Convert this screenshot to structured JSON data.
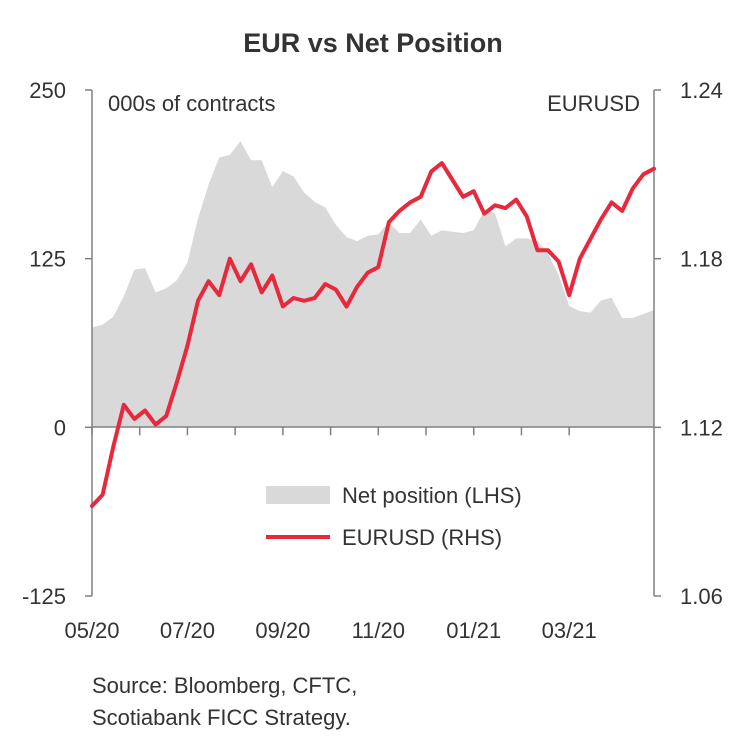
{
  "chart_data": {
    "type": "line",
    "title": "EUR  vs Net Position",
    "left_axis_label": "000s of contracts",
    "right_axis_label": "EURUSD",
    "left_axis": {
      "ylim": [
        -125,
        250
      ],
      "ticks": [
        "250",
        "125",
        "0",
        "-125"
      ],
      "tick_values": [
        250,
        125,
        0,
        -125
      ]
    },
    "right_axis": {
      "ylim": [
        1.06,
        1.24
      ],
      "ticks": [
        "1.24",
        "1.18",
        "1.12",
        "1.06"
      ],
      "tick_values": [
        1.24,
        1.18,
        1.12,
        1.06
      ]
    },
    "x_tick_labels": [
      "05/20",
      "07/20",
      "09/20",
      "11/20",
      "01/21",
      "03/21"
    ],
    "x_tick_index": [
      0,
      9,
      18,
      27,
      36,
      45
    ],
    "x_minor_ticks": [
      4.5,
      13.5,
      22.5,
      31.5,
      40.5
    ],
    "n_points": 54,
    "series": [
      {
        "name": "Net position (LHS)",
        "kind": "area",
        "axis": "left",
        "color": "#d9d9d9",
        "values": [
          74,
          76,
          82,
          97,
          117,
          118,
          100,
          103,
          109,
          122,
          155,
          180,
          200,
          202,
          212,
          198,
          198,
          178,
          190,
          186,
          174,
          167,
          163,
          150,
          141,
          138,
          142,
          143,
          152,
          144,
          144,
          154,
          142,
          146,
          145,
          144,
          146,
          161,
          159,
          134,
          140,
          140,
          138,
          129,
          113,
          90,
          86,
          85,
          94,
          96,
          81,
          81,
          84,
          87
        ]
      },
      {
        "name": "EURUSD (RHS)",
        "kind": "line",
        "axis": "right",
        "color": "#e8283c",
        "values": [
          1.092,
          1.096,
          1.113,
          1.128,
          1.123,
          1.126,
          1.121,
          1.124,
          1.136,
          1.149,
          1.165,
          1.172,
          1.167,
          1.18,
          1.172,
          1.178,
          1.168,
          1.174,
          1.163,
          1.166,
          1.165,
          1.166,
          1.171,
          1.169,
          1.163,
          1.17,
          1.175,
          1.177,
          1.193,
          1.197,
          1.2,
          1.202,
          1.211,
          1.214,
          1.208,
          1.202,
          1.204,
          1.196,
          1.199,
          1.198,
          1.201,
          1.195,
          1.183,
          1.183,
          1.179,
          1.167,
          1.18,
          1.187,
          1.194,
          1.2,
          1.197,
          1.205,
          1.21,
          1.212
        ]
      }
    ],
    "legend": {
      "placement": "bottom-right-inside",
      "entries": [
        "Net position (LHS)",
        "EURUSD (RHS)"
      ]
    },
    "grid": false
  },
  "footer": {
    "source_line1": "Source: Bloomberg, CFTC,",
    "source_line2": "Scotiabank FICC  Strategy."
  }
}
